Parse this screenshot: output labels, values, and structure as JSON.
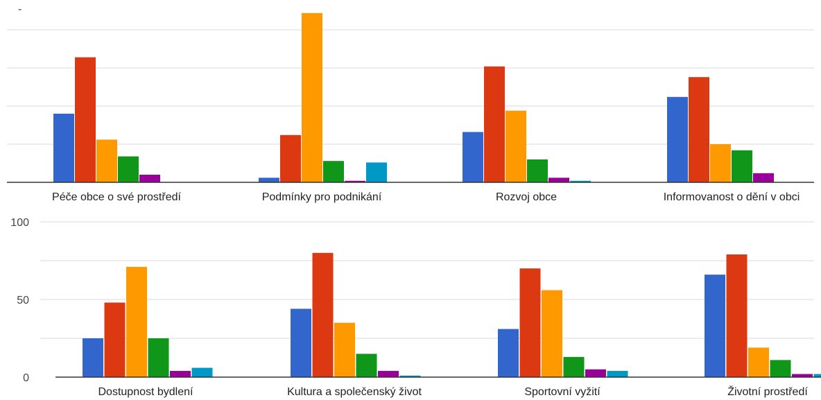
{
  "chart_data": [
    {
      "type": "bar",
      "panel": "top",
      "categories": [
        "Péče obce o své prostředí",
        "Podmínky pro podnikání",
        "Rozvoj obce",
        "Informovanost o dění v obci"
      ],
      "series": [
        {
          "color": "#3366cc",
          "values": [
            45,
            3,
            33,
            56
          ]
        },
        {
          "color": "#dc3912",
          "values": [
            82,
            31,
            76,
            69
          ]
        },
        {
          "color": "#ff9900",
          "values": [
            28,
            111,
            47,
            25
          ]
        },
        {
          "color": "#109618",
          "values": [
            17,
            14,
            15,
            21
          ]
        },
        {
          "color": "#990099",
          "values": [
            5,
            1,
            3,
            6
          ]
        },
        {
          "color": "#0099c6",
          "values": [
            0,
            13,
            1,
            0
          ]
        }
      ],
      "ylim": [
        0,
        110
      ],
      "grid": true,
      "top_marker": "-"
    },
    {
      "type": "bar",
      "panel": "bottom",
      "categories": [
        "Dostupnost bydlení",
        "Kultura a společenský život",
        "Sportovní vyžití",
        "Životní prostředí"
      ],
      "series": [
        {
          "color": "#3366cc",
          "values": [
            25,
            44,
            31,
            66
          ]
        },
        {
          "color": "#dc3912",
          "values": [
            48,
            80,
            70,
            79
          ]
        },
        {
          "color": "#ff9900",
          "values": [
            71,
            35,
            56,
            19
          ]
        },
        {
          "color": "#109618",
          "values": [
            25,
            15,
            13,
            11
          ]
        },
        {
          "color": "#990099",
          "values": [
            4,
            4,
            5,
            2
          ]
        },
        {
          "color": "#0099c6",
          "values": [
            6,
            1,
            4,
            2
          ]
        }
      ],
      "yticks": [
        "100",
        "50",
        "0"
      ],
      "ylim": [
        0,
        100
      ],
      "grid": true
    }
  ]
}
